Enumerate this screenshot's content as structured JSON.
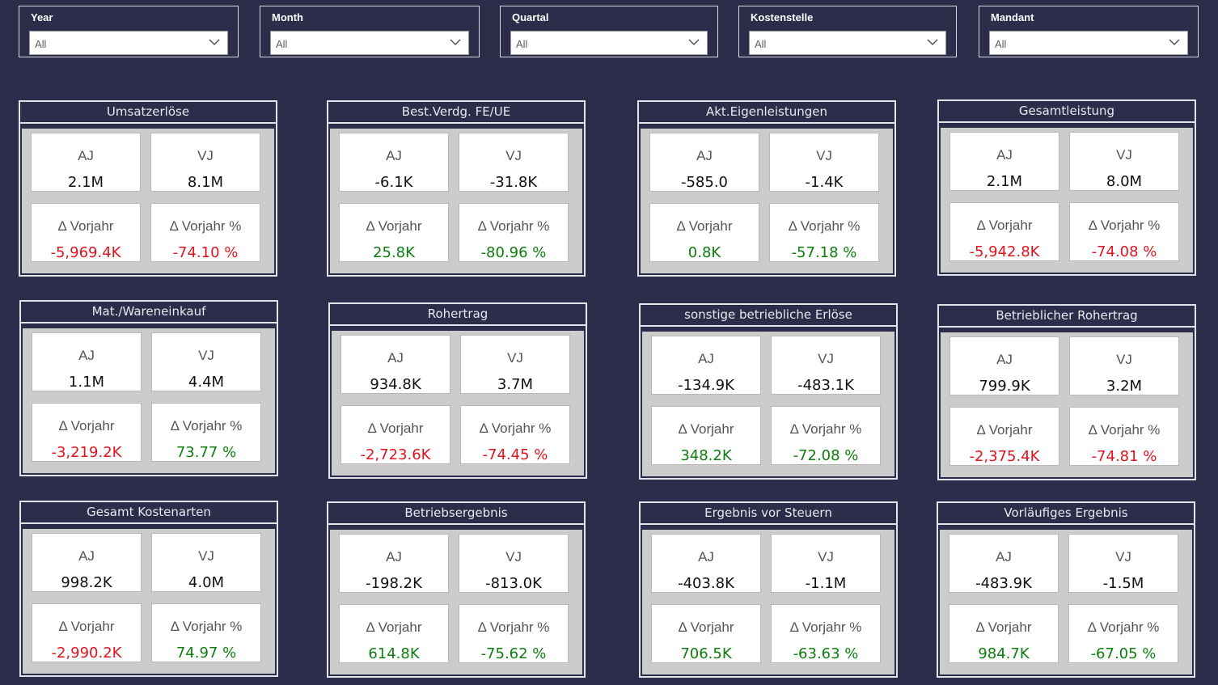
{
  "filters": [
    {
      "label": "Year",
      "value": "All"
    },
    {
      "label": "Month",
      "value": "All"
    },
    {
      "label": "Quartal",
      "value": "All"
    },
    {
      "label": "Kostenstelle",
      "value": "All"
    },
    {
      "label": "Mandant",
      "value": "All"
    }
  ],
  "tile_labels": {
    "aj": "AJ",
    "vj": "VJ",
    "delta": "Δ Vorjahr",
    "delta_pct": "Δ Vorjahr %"
  },
  "colors": {
    "background": "#2c2d4b",
    "negative": "#e0141f",
    "positive": "#0d7d0d"
  },
  "cards": [
    {
      "title": "Umsatzerlöse",
      "aj": "2.1M",
      "vj": "8.1M",
      "delta": "-5,969.4K",
      "delta_pct": "-74.10 %",
      "delta_status": "negative",
      "delta_pct_status": "negative"
    },
    {
      "title": "Best.Verdg. FE/UE",
      "aj": "-6.1K",
      "vj": "-31.8K",
      "delta": "25.8K",
      "delta_pct": "-80.96 %",
      "delta_status": "positive",
      "delta_pct_status": "positive"
    },
    {
      "title": "Akt.Eigenleistungen",
      "aj": "-585.0",
      "vj": "-1.4K",
      "delta": "0.8K",
      "delta_pct": "-57.18 %",
      "delta_status": "positive",
      "delta_pct_status": "positive"
    },
    {
      "title": "Gesamtleistung",
      "aj": "2.1M",
      "vj": "8.0M",
      "delta": "-5,942.8K",
      "delta_pct": "-74.08 %",
      "delta_status": "negative",
      "delta_pct_status": "negative"
    },
    {
      "title": "Mat./Wareneinkauf",
      "aj": "1.1M",
      "vj": "4.4M",
      "delta": "-3,219.2K",
      "delta_pct": "73.77 %",
      "delta_status": "negative",
      "delta_pct_status": "positive"
    },
    {
      "title": "Rohertrag",
      "aj": "934.8K",
      "vj": "3.7M",
      "delta": "-2,723.6K",
      "delta_pct": "-74.45 %",
      "delta_status": "negative",
      "delta_pct_status": "negative"
    },
    {
      "title": "sonstige betriebliche Erlöse",
      "aj": "-134.9K",
      "vj": "-483.1K",
      "delta": "348.2K",
      "delta_pct": "-72.08 %",
      "delta_status": "positive",
      "delta_pct_status": "positive"
    },
    {
      "title": "Betrieblicher Rohertrag",
      "aj": "799.9K",
      "vj": "3.2M",
      "delta": "-2,375.4K",
      "delta_pct": "-74.81 %",
      "delta_status": "negative",
      "delta_pct_status": "negative"
    },
    {
      "title": "Gesamt Kostenarten",
      "aj": "998.2K",
      "vj": "4.0M",
      "delta": "-2,990.2K",
      "delta_pct": "74.97 %",
      "delta_status": "negative",
      "delta_pct_status": "positive"
    },
    {
      "title": "Betriebsergebnis",
      "aj": "-198.2K",
      "vj": "-813.0K",
      "delta": "614.8K",
      "delta_pct": "-75.62 %",
      "delta_status": "positive",
      "delta_pct_status": "positive"
    },
    {
      "title": "Ergebnis vor Steuern",
      "aj": "-403.8K",
      "vj": "-1.1M",
      "delta": "706.5K",
      "delta_pct": "-63.63 %",
      "delta_status": "positive",
      "delta_pct_status": "positive"
    },
    {
      "title": "Vorläufiges Ergebnis",
      "aj": "-483.9K",
      "vj": "-1.5M",
      "delta": "984.7K",
      "delta_pct": "-67.05 %",
      "delta_status": "positive",
      "delta_pct_status": "positive"
    }
  ]
}
